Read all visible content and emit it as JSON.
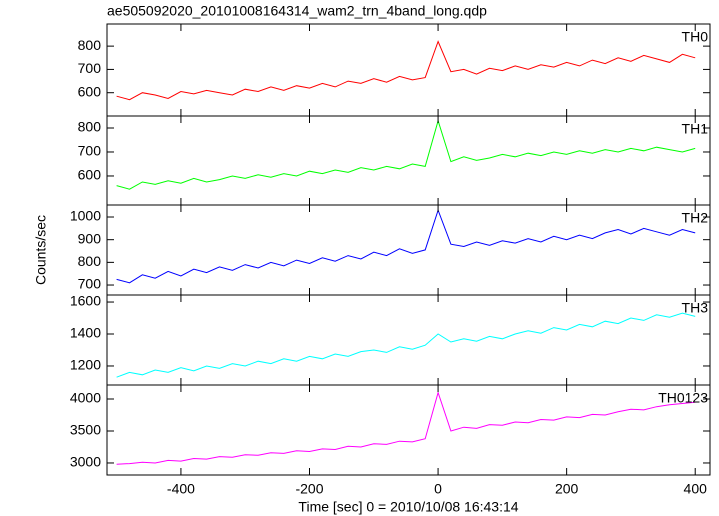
{
  "chart_data": [
    {
      "type": "line",
      "title": "ae505092020_20101008164314_wam2_trn_4band_long.qdp",
      "xlim": [
        -515,
        423
      ],
      "xticks": [
        -400,
        -200,
        0,
        200,
        400
      ],
      "ylim": [
        500,
        895
      ],
      "yticks": [
        600,
        700,
        800
      ],
      "x": [
        -500,
        -480,
        -460,
        -440,
        -420,
        -400,
        -380,
        -360,
        -340,
        -320,
        -300,
        -280,
        -260,
        -240,
        -220,
        -200,
        -180,
        -160,
        -140,
        -120,
        -100,
        -80,
        -60,
        -40,
        -20,
        0,
        20,
        40,
        60,
        80,
        100,
        120,
        140,
        160,
        180,
        200,
        220,
        240,
        260,
        280,
        300,
        320,
        340,
        360,
        380,
        400
      ],
      "series": [
        {
          "name": "TH0",
          "color": "#ff0000",
          "values": [
            585,
            570,
            600,
            590,
            575,
            605,
            595,
            610,
            600,
            590,
            615,
            605,
            625,
            610,
            630,
            620,
            640,
            625,
            650,
            640,
            660,
            645,
            670,
            655,
            665,
            820,
            690,
            700,
            680,
            705,
            695,
            715,
            700,
            720,
            710,
            730,
            715,
            740,
            725,
            750,
            735,
            760,
            745,
            730,
            765,
            750
          ]
        }
      ]
    },
    {
      "type": "line",
      "xlim": [
        -515,
        423
      ],
      "xticks": [
        -400,
        -200,
        0,
        200,
        400
      ],
      "ylim": [
        479,
        850
      ],
      "yticks": [
        600,
        700,
        800
      ],
      "x": [
        -500,
        -480,
        -460,
        -440,
        -420,
        -400,
        -380,
        -360,
        -340,
        -320,
        -300,
        -280,
        -260,
        -240,
        -220,
        -200,
        -180,
        -160,
        -140,
        -120,
        -100,
        -80,
        -60,
        -40,
        -20,
        0,
        20,
        40,
        60,
        80,
        100,
        120,
        140,
        160,
        180,
        200,
        220,
        240,
        260,
        280,
        300,
        320,
        340,
        360,
        380,
        400
      ],
      "series": [
        {
          "name": "TH1",
          "color": "#00ff00",
          "values": [
            560,
            545,
            575,
            565,
            580,
            570,
            590,
            575,
            585,
            600,
            590,
            605,
            595,
            610,
            600,
            620,
            610,
            625,
            615,
            635,
            625,
            640,
            630,
            650,
            640,
            830,
            660,
            680,
            665,
            675,
            690,
            680,
            695,
            685,
            700,
            690,
            705,
            695,
            710,
            700,
            715,
            705,
            720,
            710,
            700,
            715
          ]
        }
      ]
    },
    {
      "type": "line",
      "ylabel": "Counts/sec",
      "xlim": [
        -515,
        423
      ],
      "xticks": [
        -400,
        -200,
        0,
        200,
        400
      ],
      "ylim": [
        656,
        1053
      ],
      "yticks": [
        700,
        800,
        900,
        1000
      ],
      "x": [
        -500,
        -480,
        -460,
        -440,
        -420,
        -400,
        -380,
        -360,
        -340,
        -320,
        -300,
        -280,
        -260,
        -240,
        -220,
        -200,
        -180,
        -160,
        -140,
        -120,
        -100,
        -80,
        -60,
        -40,
        -20,
        0,
        20,
        40,
        60,
        80,
        100,
        120,
        140,
        160,
        180,
        200,
        220,
        240,
        260,
        280,
        300,
        320,
        340,
        360,
        380,
        400
      ],
      "series": [
        {
          "name": "TH2",
          "color": "#0000ff",
          "values": [
            725,
            710,
            745,
            730,
            760,
            740,
            770,
            755,
            780,
            765,
            790,
            775,
            800,
            785,
            810,
            795,
            820,
            805,
            830,
            815,
            845,
            830,
            860,
            840,
            855,
            1030,
            880,
            870,
            890,
            875,
            895,
            885,
            905,
            890,
            915,
            900,
            920,
            905,
            930,
            945,
            925,
            950,
            935,
            920,
            945,
            930
          ]
        }
      ]
    },
    {
      "type": "line",
      "xlim": [
        -515,
        423
      ],
      "xticks": [
        -400,
        -200,
        0,
        200,
        400
      ],
      "ylim": [
        1081,
        1644
      ],
      "yticks": [
        1200,
        1400,
        1600
      ],
      "x": [
        -500,
        -480,
        -460,
        -440,
        -420,
        -400,
        -380,
        -360,
        -340,
        -320,
        -300,
        -280,
        -260,
        -240,
        -220,
        -200,
        -180,
        -160,
        -140,
        -120,
        -100,
        -80,
        -60,
        -40,
        -20,
        0,
        20,
        40,
        60,
        80,
        100,
        120,
        140,
        160,
        180,
        200,
        220,
        240,
        260,
        280,
        300,
        320,
        340,
        360,
        380,
        400
      ],
      "series": [
        {
          "name": "TH3",
          "color": "#00ffff",
          "values": [
            1130,
            1160,
            1145,
            1175,
            1160,
            1190,
            1170,
            1200,
            1185,
            1215,
            1200,
            1230,
            1215,
            1245,
            1230,
            1260,
            1245,
            1275,
            1260,
            1290,
            1300,
            1285,
            1320,
            1305,
            1330,
            1400,
            1350,
            1370,
            1355,
            1385,
            1370,
            1400,
            1420,
            1405,
            1440,
            1425,
            1460,
            1445,
            1480,
            1465,
            1500,
            1485,
            1520,
            1505,
            1530,
            1510
          ]
        }
      ]
    },
    {
      "type": "line",
      "xlabel": "Time [sec] 0 = 2010/10/08 16:43:14",
      "xlim": [
        -515,
        423
      ],
      "xticks": [
        -400,
        -200,
        0,
        200,
        400
      ],
      "ylim": [
        2812,
        4219
      ],
      "yticks": [
        3000,
        3500,
        4000
      ],
      "x": [
        -500,
        -480,
        -460,
        -440,
        -420,
        -400,
        -380,
        -360,
        -340,
        -320,
        -300,
        -280,
        -260,
        -240,
        -220,
        -200,
        -180,
        -160,
        -140,
        -120,
        -100,
        -80,
        -60,
        -40,
        -20,
        0,
        20,
        40,
        60,
        80,
        100,
        120,
        140,
        160,
        180,
        200,
        220,
        240,
        260,
        280,
        300,
        320,
        340,
        360,
        380,
        400
      ],
      "series": [
        {
          "name": "TH0123",
          "color": "#ff00ff",
          "values": [
            2980,
            2990,
            3010,
            3000,
            3040,
            3030,
            3070,
            3060,
            3100,
            3090,
            3130,
            3120,
            3160,
            3150,
            3190,
            3180,
            3220,
            3210,
            3260,
            3250,
            3300,
            3290,
            3340,
            3330,
            3380,
            4100,
            3500,
            3560,
            3540,
            3600,
            3590,
            3640,
            3630,
            3680,
            3670,
            3720,
            3710,
            3760,
            3750,
            3800,
            3840,
            3830,
            3880,
            3910,
            3930,
            3950
          ]
        }
      ]
    }
  ]
}
